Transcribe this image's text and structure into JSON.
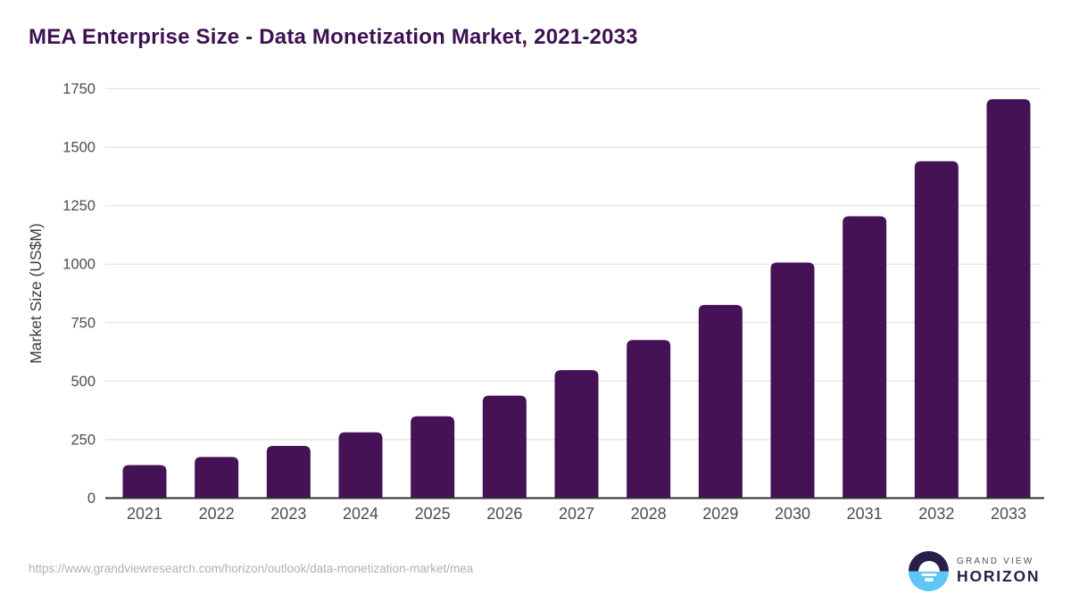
{
  "header": {
    "title": "MEA Enterprise Size - Data Monetization Market, 2021-2033"
  },
  "chart_data": {
    "type": "bar",
    "title": "MEA Enterprise Size - Data Monetization Market, 2021-2033",
    "categories": [
      "2021",
      "2022",
      "2023",
      "2024",
      "2025",
      "2026",
      "2027",
      "2028",
      "2029",
      "2030",
      "2031",
      "2032",
      "2033"
    ],
    "values": [
      141,
      176,
      223,
      281,
      350,
      438,
      547,
      676,
      826,
      1007,
      1205,
      1440,
      1705
    ],
    "xlabel": "",
    "ylabel": "Market Size (US$M)",
    "ylim": [
      0,
      1750
    ],
    "yticks": [
      0,
      250,
      500,
      750,
      1000,
      1250,
      1500,
      1750
    ],
    "grid": true,
    "legend": "none",
    "bar_color": "#451256"
  },
  "colors": {
    "title": "#3d1152",
    "bar": "#451256",
    "gridline": "#e4e4e4",
    "axis_line": "#2f2f2f",
    "tick_label": "#4d4d4d",
    "axis_label": "#3f3f3f",
    "footer_url": "#b1b1b1",
    "logo_dark": "#2b1e4a",
    "logo_blue": "#5ec6f2"
  },
  "footer": {
    "source_url": "https://www.grandviewresearch.com/horizon/outlook/data-monetization-market/mea",
    "logo": {
      "line1": "GRAND VIEW",
      "line2": "HORIZON",
      "icon": "sunrise-horizon-icon"
    }
  }
}
